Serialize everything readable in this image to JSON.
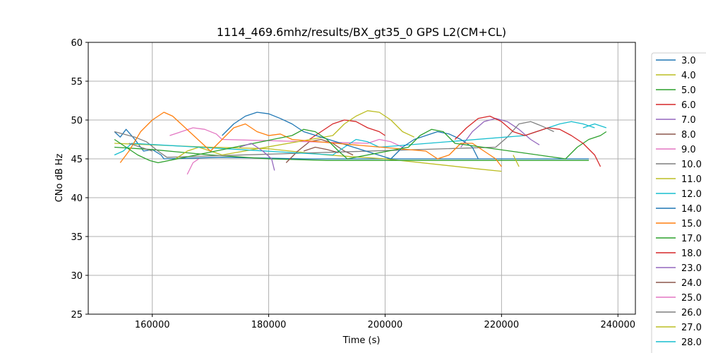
{
  "chart_data": {
    "type": "line",
    "title": "1114_469.6mhz/results/BX_gt35_0 GPS L2(CM+CL)",
    "xlabel": "Time (s)",
    "ylabel": "CNo dB Hz",
    "xlim": [
      149000,
      243000
    ],
    "ylim": [
      25,
      60
    ],
    "xticks": [
      160000,
      180000,
      200000,
      220000,
      240000
    ],
    "yticks": [
      25,
      30,
      35,
      40,
      45,
      50,
      55,
      60
    ],
    "grid": true,
    "legend_position": "right, outside plot",
    "series": [
      {
        "name": "3.0",
        "color": "#1f77b4",
        "points": [
          [
            153500,
            48.5
          ],
          [
            154500,
            47.8
          ],
          [
            155500,
            48.8
          ],
          [
            157000,
            47.5
          ],
          [
            158500,
            46.0
          ],
          [
            160000,
            46.2
          ],
          [
            161500,
            45.5
          ],
          [
            162000,
            45.0
          ],
          [
            172000,
            45.2
          ],
          [
            186000,
            45.0
          ],
          [
            198000,
            45.0
          ],
          [
            215000,
            45.0
          ],
          [
            235000,
            45.0
          ]
        ]
      },
      {
        "name": "4.0",
        "color": "#bcbd22",
        "points": [
          [
            153500,
            47.0
          ],
          [
            160000,
            46.8
          ],
          [
            170000,
            46.5
          ],
          [
            180000,
            46.3
          ],
          [
            190000,
            45.5
          ],
          [
            200000,
            45.0
          ],
          [
            210000,
            44.2
          ],
          [
            216000,
            43.7
          ],
          [
            220000,
            43.4
          ]
        ]
      },
      {
        "name": "5.0",
        "color": "#2ca02c",
        "points": [
          [
            153500,
            46.5
          ],
          [
            160000,
            46.2
          ],
          [
            170000,
            45.5
          ],
          [
            180000,
            45.0
          ],
          [
            190000,
            44.8
          ],
          [
            200000,
            44.8
          ],
          [
            220000,
            44.8
          ],
          [
            235000,
            44.8
          ]
        ]
      },
      {
        "name": "6.0",
        "color": "#d62728",
        "points": [
          [
            187000,
            47.5
          ],
          [
            189000,
            48.5
          ],
          [
            191000,
            49.5
          ],
          [
            193000,
            50.0
          ],
          [
            195000,
            49.8
          ],
          [
            197000,
            49.0
          ],
          [
            199000,
            48.5
          ],
          [
            200000,
            48.0
          ]
        ]
      },
      {
        "name": "7.0",
        "color": "#9467bd",
        "points": [
          [
            213000,
            46.5
          ],
          [
            215000,
            48.5
          ],
          [
            217000,
            49.8
          ],
          [
            219000,
            50.2
          ],
          [
            221000,
            49.8
          ],
          [
            223000,
            48.8
          ],
          [
            225000,
            47.5
          ],
          [
            226500,
            46.8
          ]
        ]
      },
      {
        "name": "8.0",
        "color": "#8c564b",
        "points": [
          [
            183000,
            44.5
          ],
          [
            185000,
            46.0
          ],
          [
            187000,
            47.2
          ],
          [
            189000,
            47.5
          ],
          [
            191000,
            47.0
          ],
          [
            193000,
            46.0
          ],
          [
            194500,
            45.5
          ]
        ]
      },
      {
        "name": "9.0",
        "color": "#e377c2",
        "points": [
          [
            163000,
            48.0
          ],
          [
            165000,
            48.5
          ],
          [
            167000,
            49.0
          ],
          [
            169000,
            48.8
          ],
          [
            171000,
            48.2
          ],
          [
            172000,
            47.5
          ],
          [
            197000,
            47.0
          ],
          [
            199000,
            47.5
          ],
          [
            201000,
            47.2
          ],
          [
            203000,
            46.5
          ]
        ]
      },
      {
        "name": "10.0",
        "color": "#7f7f7f",
        "points": [
          [
            153500,
            48.5
          ],
          [
            155000,
            48.2
          ],
          [
            157000,
            47.8
          ],
          [
            159000,
            47.2
          ],
          [
            161000,
            46.0
          ],
          [
            162500,
            45.2
          ],
          [
            219000,
            46.5
          ],
          [
            221000,
            47.8
          ],
          [
            223000,
            49.5
          ],
          [
            225000,
            49.8
          ],
          [
            227000,
            49.2
          ],
          [
            229000,
            48.5
          ]
        ]
      },
      {
        "name": "11.0",
        "color": "#bcbd22",
        "points": [
          [
            164000,
            45.0
          ],
          [
            166000,
            46.0
          ],
          [
            168000,
            46.5
          ],
          [
            170000,
            46.0
          ],
          [
            172000,
            45.5
          ],
          [
            191000,
            48.0
          ],
          [
            193000,
            49.5
          ],
          [
            195000,
            50.5
          ],
          [
            197000,
            51.2
          ],
          [
            199000,
            51.0
          ],
          [
            201000,
            50.0
          ],
          [
            203000,
            48.5
          ],
          [
            205000,
            47.8
          ]
        ]
      },
      {
        "name": "12.0",
        "color": "#17becf",
        "points": [
          [
            153500,
            45.5
          ],
          [
            155000,
            46.0
          ],
          [
            156500,
            47.0
          ],
          [
            191000,
            45.5
          ],
          [
            193000,
            46.5
          ],
          [
            195000,
            47.5
          ],
          [
            197000,
            47.2
          ],
          [
            199000,
            46.5
          ],
          [
            224000,
            48.0
          ],
          [
            226000,
            48.5
          ],
          [
            228000,
            49.0
          ],
          [
            230000,
            49.5
          ],
          [
            232000,
            49.8
          ],
          [
            234000,
            49.5
          ],
          [
            236000,
            49.0
          ]
        ]
      },
      {
        "name": "14.0",
        "color": "#1f77b4",
        "points": [
          [
            172000,
            48.0
          ],
          [
            174000,
            49.5
          ],
          [
            176000,
            50.5
          ],
          [
            178000,
            51.0
          ],
          [
            180000,
            50.8
          ],
          [
            182000,
            50.2
          ],
          [
            184000,
            49.5
          ],
          [
            186000,
            48.5
          ],
          [
            201000,
            45.0
          ],
          [
            203000,
            46.5
          ],
          [
            205000,
            47.5
          ],
          [
            207000,
            48.0
          ],
          [
            209000,
            48.5
          ],
          [
            211000,
            48.2
          ],
          [
            213000,
            47.5
          ],
          [
            215000,
            46.5
          ],
          [
            216000,
            45.0
          ]
        ]
      },
      {
        "name": "15.0",
        "color": "#ff7f0e",
        "points": [
          [
            154500,
            44.5
          ],
          [
            156000,
            46.0
          ],
          [
            158000,
            48.5
          ],
          [
            160000,
            50.0
          ],
          [
            162000,
            51.0
          ],
          [
            163500,
            50.5
          ],
          [
            170000,
            46.0
          ],
          [
            172000,
            47.5
          ],
          [
            174000,
            49.0
          ],
          [
            176000,
            49.5
          ],
          [
            178000,
            48.5
          ],
          [
            180000,
            48.0
          ],
          [
            182000,
            48.2
          ],
          [
            184000,
            47.5
          ],
          [
            207000,
            46.0
          ],
          [
            209000,
            45.0
          ],
          [
            211000,
            45.5
          ],
          [
            213000,
            47.0
          ],
          [
            215000,
            47.0
          ],
          [
            217000,
            46.0
          ],
          [
            219000,
            45.0
          ],
          [
            220000,
            44.0
          ]
        ]
      },
      {
        "name": "17.0",
        "color": "#2ca02c",
        "points": [
          [
            153500,
            47.5
          ],
          [
            155500,
            46.5
          ],
          [
            157500,
            45.5
          ],
          [
            159500,
            44.8
          ],
          [
            161000,
            44.5
          ],
          [
            184000,
            48.0
          ],
          [
            186000,
            48.8
          ],
          [
            188000,
            48.5
          ],
          [
            190000,
            47.5
          ],
          [
            192000,
            46.0
          ],
          [
            193500,
            45.0
          ],
          [
            204000,
            46.5
          ],
          [
            206000,
            48.0
          ],
          [
            208000,
            48.8
          ],
          [
            210000,
            48.5
          ],
          [
            212000,
            47.0
          ],
          [
            231000,
            45.0
          ],
          [
            233000,
            46.5
          ],
          [
            235000,
            47.5
          ],
          [
            237000,
            48.0
          ],
          [
            238000,
            48.5
          ]
        ]
      },
      {
        "name": "18.0",
        "color": "#d62728",
        "points": [
          [
            212000,
            47.5
          ],
          [
            214000,
            49.0
          ],
          [
            216000,
            50.2
          ],
          [
            218000,
            50.5
          ],
          [
            220000,
            49.8
          ],
          [
            222000,
            48.5
          ],
          [
            224000,
            48.0
          ],
          [
            226000,
            48.5
          ],
          [
            228000,
            49.0
          ],
          [
            230000,
            48.8
          ],
          [
            232000,
            48.0
          ],
          [
            234000,
            47.0
          ],
          [
            236000,
            45.5
          ],
          [
            237000,
            44.0
          ]
        ]
      },
      {
        "name": "23.0",
        "color": "#9467bd",
        "points": [
          [
            175000,
            46.5
          ],
          [
            177000,
            47.0
          ],
          [
            179000,
            46.0
          ],
          [
            180500,
            45.0
          ],
          [
            181000,
            43.5
          ]
        ]
      },
      {
        "name": "24.0",
        "color": "#8c564b",
        "points": [
          [
            186000,
            46.0
          ],
          [
            188000,
            46.5
          ],
          [
            190000,
            46.2
          ],
          [
            192000,
            45.8
          ]
        ]
      },
      {
        "name": "25.0",
        "color": "#e377c2",
        "points": [
          [
            166000,
            43.0
          ],
          [
            167000,
            44.5
          ],
          [
            168000,
            45.0
          ]
        ]
      },
      {
        "name": "26.0",
        "color": "#7f7f7f",
        "points": [
          [
            156000,
            47.0
          ],
          [
            158000,
            46.5
          ],
          [
            160000,
            46.0
          ]
        ]
      },
      {
        "name": "27.0",
        "color": "#bcbd22",
        "points": [
          [
            222000,
            45.5
          ],
          [
            223000,
            44.0
          ]
        ]
      },
      {
        "name": "28.0",
        "color": "#17becf",
        "points": [
          [
            234000,
            49.0
          ],
          [
            236000,
            49.5
          ],
          [
            238000,
            49.0
          ]
        ]
      }
    ]
  }
}
